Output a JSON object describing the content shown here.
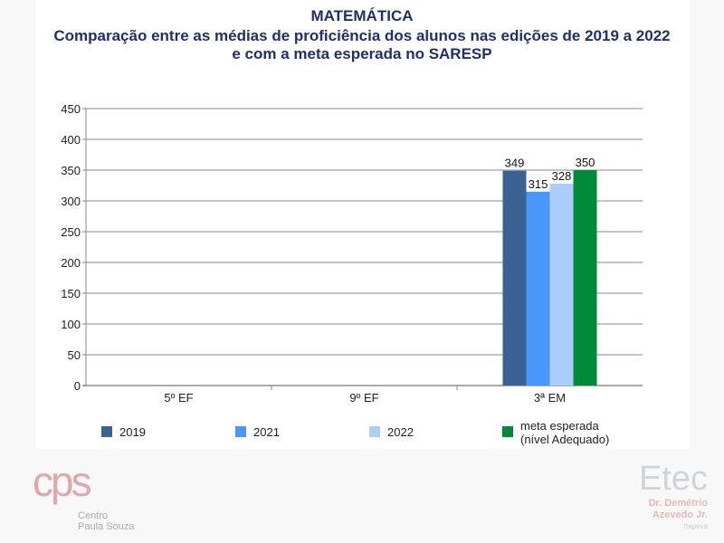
{
  "chart_data": {
    "type": "bar",
    "title": "MATEMÁTICA",
    "subtitle": [
      "Comparação entre as médias de proficiência dos alunos nas edições de 2019 a 2022",
      "e com a meta esperada no SARESP"
    ],
    "categories": [
      "5º EF",
      "9º EF",
      "3ª EM"
    ],
    "series": [
      {
        "name": "2019",
        "color": "#3a6293",
        "values": [
          null,
          null,
          349
        ]
      },
      {
        "name": "2021",
        "color": "#4a97fb",
        "values": [
          null,
          null,
          315
        ]
      },
      {
        "name": "2022",
        "color": "#aacdfb",
        "values": [
          null,
          null,
          328
        ]
      },
      {
        "name": "meta esperada (nível Adequado)",
        "label_lines": [
          "meta esperada",
          "(nível Adequado)"
        ],
        "color": "#008a3a",
        "values": [
          null,
          null,
          350
        ]
      }
    ],
    "ylim": [
      0,
      450
    ],
    "yticks": [
      0,
      50,
      100,
      150,
      200,
      250,
      300,
      350,
      400,
      450
    ],
    "grid": true,
    "legend": "bottom"
  },
  "logos": {
    "left": {
      "mark": "cps",
      "text": [
        "Centro",
        "Paula Souza"
      ]
    },
    "right": {
      "mark": "Etec",
      "text": [
        "Dr. Demétrio",
        "Azevedo Jr.",
        "Itapeva"
      ]
    }
  }
}
